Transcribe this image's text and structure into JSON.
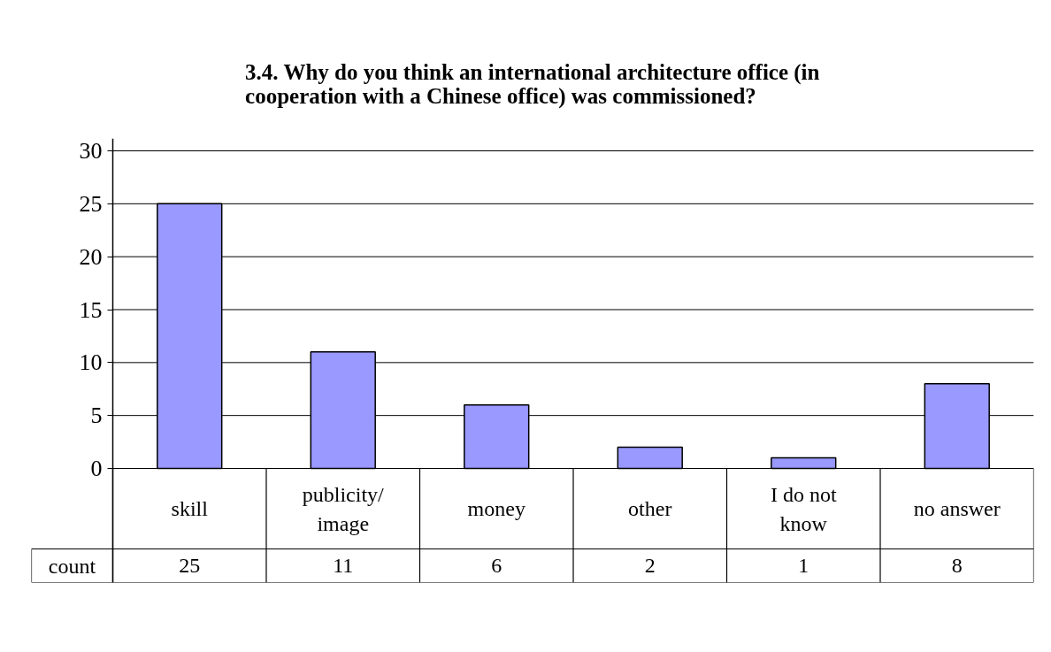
{
  "chart_data": {
    "type": "bar",
    "title": "3.4. Why do you think an international architecture office (in cooperation with a Chinese office) was commissioned?",
    "categories": [
      "skill",
      "publicity/image",
      "money",
      "other",
      "I do not know",
      "no answer"
    ],
    "series": [
      {
        "name": "count",
        "color": "#9999ff",
        "values": [
          25,
          11,
          6,
          2,
          1,
          8
        ]
      }
    ],
    "ylim": [
      0,
      30
    ],
    "yticks": [
      0,
      5,
      10,
      15,
      20,
      25,
      30
    ],
    "grid": "y",
    "data_labels": true
  }
}
